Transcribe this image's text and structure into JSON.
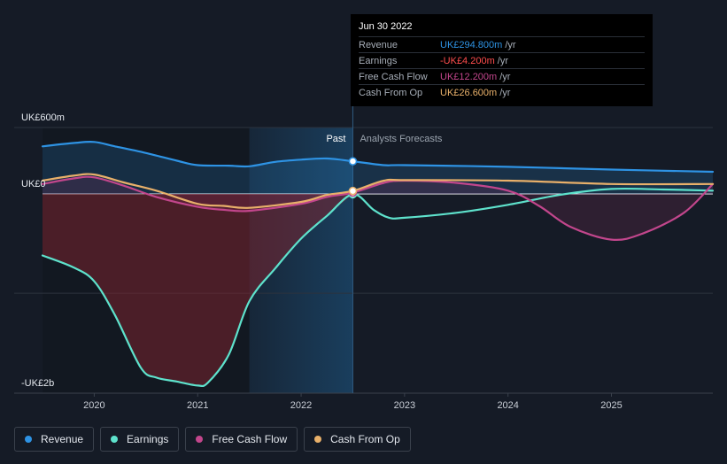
{
  "chart_data": {
    "type": "line",
    "title": "",
    "x_domain": [
      2019.5,
      2025.98
    ],
    "ylim": [
      -2.0,
      0.65
    ],
    "y_labels": [
      {
        "value": 0.6,
        "text": "UK£600m"
      },
      {
        "value": 0.0,
        "text": "UK£0"
      },
      {
        "value": -1.9,
        "text": "-UK£2b"
      }
    ],
    "x_ticks": [
      {
        "value": 2020,
        "text": "2020"
      },
      {
        "value": 2021,
        "text": "2021"
      },
      {
        "value": 2022,
        "text": "2022"
      },
      {
        "value": 2023,
        "text": "2023"
      },
      {
        "value": 2024,
        "text": "2024"
      },
      {
        "value": 2025,
        "text": "2025"
      }
    ],
    "past_label": "Past",
    "forecast_label": "Analysts Forecasts",
    "past_end": 2022.5,
    "shaded_start": 2021.5,
    "series": [
      {
        "name": "Revenue",
        "color": "#2e93e4",
        "points": [
          [
            2019.5,
            0.43
          ],
          [
            2019.8,
            0.46
          ],
          [
            2020.0,
            0.47
          ],
          [
            2020.2,
            0.43
          ],
          [
            2020.5,
            0.37
          ],
          [
            2020.8,
            0.3
          ],
          [
            2021.0,
            0.26
          ],
          [
            2021.3,
            0.255
          ],
          [
            2021.5,
            0.25
          ],
          [
            2021.75,
            0.29
          ],
          [
            2022.0,
            0.31
          ],
          [
            2022.25,
            0.32
          ],
          [
            2022.5,
            0.295
          ],
          [
            2022.8,
            0.26
          ],
          [
            2023.0,
            0.26
          ],
          [
            2024.0,
            0.245
          ],
          [
            2025.0,
            0.22
          ],
          [
            2025.98,
            0.2
          ]
        ]
      },
      {
        "name": "Earnings",
        "color": "#5ee2cc",
        "points": [
          [
            2019.5,
            -0.62
          ],
          [
            2019.8,
            -0.74
          ],
          [
            2020.0,
            -0.88
          ],
          [
            2020.2,
            -1.22
          ],
          [
            2020.45,
            -1.75
          ],
          [
            2020.6,
            -1.85
          ],
          [
            2020.8,
            -1.89
          ],
          [
            2021.0,
            -1.93
          ],
          [
            2021.1,
            -1.9
          ],
          [
            2021.3,
            -1.62
          ],
          [
            2021.5,
            -1.08
          ],
          [
            2021.75,
            -0.75
          ],
          [
            2022.0,
            -0.45
          ],
          [
            2022.25,
            -0.22
          ],
          [
            2022.5,
            -0.004
          ],
          [
            2022.7,
            -0.16
          ],
          [
            2022.85,
            -0.24
          ],
          [
            2023.0,
            -0.24
          ],
          [
            2023.5,
            -0.19
          ],
          [
            2024.0,
            -0.11
          ],
          [
            2024.5,
            -0.01
          ],
          [
            2025.0,
            0.045
          ],
          [
            2025.5,
            0.04
          ],
          [
            2025.98,
            0.03
          ]
        ]
      },
      {
        "name": "Free Cash Flow",
        "color": "#c2468c",
        "points": [
          [
            2019.5,
            0.09
          ],
          [
            2019.8,
            0.14
          ],
          [
            2020.0,
            0.15
          ],
          [
            2020.3,
            0.07
          ],
          [
            2020.6,
            -0.03
          ],
          [
            2021.0,
            -0.13
          ],
          [
            2021.25,
            -0.16
          ],
          [
            2021.5,
            -0.17
          ],
          [
            2022.0,
            -0.1
          ],
          [
            2022.25,
            -0.03
          ],
          [
            2022.5,
            0.012
          ],
          [
            2022.8,
            0.1
          ],
          [
            2023.0,
            0.12
          ],
          [
            2023.5,
            0.1
          ],
          [
            2024.0,
            0.03
          ],
          [
            2024.3,
            -0.12
          ],
          [
            2024.6,
            -0.33
          ],
          [
            2025.0,
            -0.46
          ],
          [
            2025.3,
            -0.4
          ],
          [
            2025.7,
            -0.19
          ],
          [
            2025.98,
            0.09
          ]
        ]
      },
      {
        "name": "Cash From Op",
        "color": "#e8b06a",
        "points": [
          [
            2019.5,
            0.12
          ],
          [
            2019.8,
            0.165
          ],
          [
            2020.0,
            0.175
          ],
          [
            2020.3,
            0.1
          ],
          [
            2020.6,
            0.03
          ],
          [
            2021.0,
            -0.1
          ],
          [
            2021.25,
            -0.12
          ],
          [
            2021.5,
            -0.14
          ],
          [
            2022.0,
            -0.08
          ],
          [
            2022.25,
            -0.01
          ],
          [
            2022.5,
            0.027
          ],
          [
            2022.8,
            0.12
          ],
          [
            2023.0,
            0.125
          ],
          [
            2024.0,
            0.12
          ],
          [
            2025.0,
            0.09
          ],
          [
            2025.98,
            0.09
          ]
        ]
      }
    ]
  },
  "tooltip": {
    "date": "Jun 30 2022",
    "rows": [
      {
        "label": "Revenue",
        "value": "UK£294.800m",
        "unit": "/yr",
        "color": "#2e93e4"
      },
      {
        "label": "Earnings",
        "value": "-UK£4.200m",
        "unit": "/yr",
        "color": "#ff4d4d"
      },
      {
        "label": "Free Cash Flow",
        "value": "UK£12.200m",
        "unit": "/yr",
        "color": "#c2468c"
      },
      {
        "label": "Cash From Op",
        "value": "UK£26.600m",
        "unit": "/yr",
        "color": "#e8b06a"
      }
    ]
  },
  "legend": [
    {
      "label": "Revenue",
      "color": "#2e93e4"
    },
    {
      "label": "Earnings",
      "color": "#5ee2cc"
    },
    {
      "label": "Free Cash Flow",
      "color": "#c2468c"
    },
    {
      "label": "Cash From Op",
      "color": "#e8b06a"
    }
  ]
}
